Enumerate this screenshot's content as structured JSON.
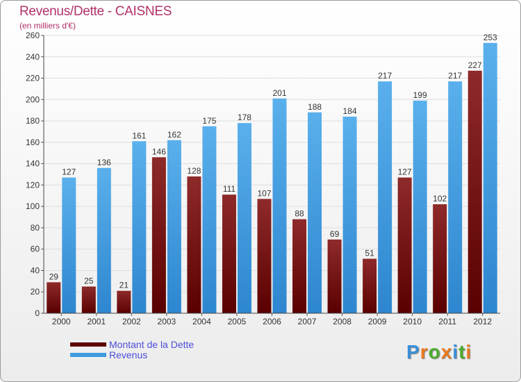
{
  "header": {
    "title": "Revenus/Dette - CAISNES",
    "subtitle": "(en milliers d'€)"
  },
  "chart_data": {
    "type": "bar",
    "categories": [
      "2000",
      "2001",
      "2002",
      "2003",
      "2004",
      "2005",
      "2006",
      "2007",
      "2008",
      "2009",
      "2010",
      "2011",
      "2012"
    ],
    "series": [
      {
        "name": "Montant de la Dette",
        "color": "#7a1414",
        "values": [
          29,
          25,
          21,
          146,
          128,
          111,
          107,
          88,
          69,
          51,
          127,
          102,
          227
        ]
      },
      {
        "name": "Revenus",
        "color": "#3f9ae0",
        "values": [
          127,
          136,
          161,
          162,
          175,
          178,
          201,
          188,
          184,
          217,
          199,
          217,
          253
        ]
      }
    ],
    "ylim": [
      0,
      260
    ],
    "yticks": [
      0,
      20,
      40,
      60,
      80,
      100,
      120,
      140,
      160,
      180,
      200,
      220,
      240,
      260
    ],
    "grid": true,
    "legend_position": "bottom-left"
  },
  "legend": {
    "items": [
      {
        "label": "Montant de la Dette",
        "color": "#5a0000"
      },
      {
        "label": "Revenus",
        "color": "#3f9ae0"
      }
    ]
  },
  "brand": {
    "letters": [
      {
        "ch": "P",
        "color": "#3a8fd8"
      },
      {
        "ch": "r",
        "color": "#e8791e"
      },
      {
        "ch": "o",
        "color": "#4cab2e"
      },
      {
        "ch": "x",
        "color": "#e8791e"
      },
      {
        "ch": "i",
        "color": "#3a8fd8"
      },
      {
        "ch": "t",
        "color": "#4cab2e"
      },
      {
        "ch": "i",
        "color": "#e8791e"
      }
    ]
  }
}
